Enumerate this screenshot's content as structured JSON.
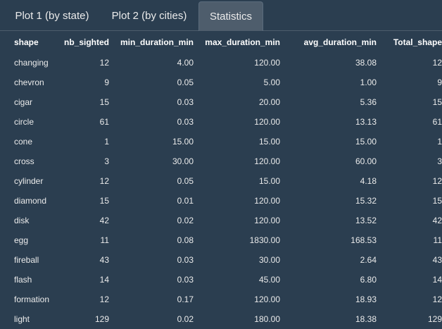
{
  "tabs": [
    {
      "label": "Plot 1 (by state)",
      "active": false
    },
    {
      "label": "Plot 2 (by cities)",
      "active": false
    },
    {
      "label": "Statistics",
      "active": true
    }
  ],
  "table": {
    "columns": [
      "shape",
      "nb_sighted",
      "min_duration_min",
      "max_duration_min",
      "avg_duration_min",
      "Total_shape"
    ],
    "rows": [
      [
        "changing",
        "12",
        "4.00",
        "120.00",
        "38.08",
        "12"
      ],
      [
        "chevron",
        "9",
        "0.05",
        "5.00",
        "1.00",
        "9"
      ],
      [
        "cigar",
        "15",
        "0.03",
        "20.00",
        "5.36",
        "15"
      ],
      [
        "circle",
        "61",
        "0.03",
        "120.00",
        "13.13",
        "61"
      ],
      [
        "cone",
        "1",
        "15.00",
        "15.00",
        "15.00",
        "1"
      ],
      [
        "cross",
        "3",
        "30.00",
        "120.00",
        "60.00",
        "3"
      ],
      [
        "cylinder",
        "12",
        "0.05",
        "15.00",
        "4.18",
        "12"
      ],
      [
        "diamond",
        "15",
        "0.01",
        "120.00",
        "15.32",
        "15"
      ],
      [
        "disk",
        "42",
        "0.02",
        "120.00",
        "13.52",
        "42"
      ],
      [
        "egg",
        "11",
        "0.08",
        "1830.00",
        "168.53",
        "11"
      ],
      [
        "fireball",
        "43",
        "0.03",
        "30.00",
        "2.64",
        "43"
      ],
      [
        "flash",
        "14",
        "0.03",
        "45.00",
        "6.80",
        "14"
      ],
      [
        "formation",
        "12",
        "0.17",
        "120.00",
        "18.93",
        "12"
      ],
      [
        "light",
        "129",
        "0.02",
        "180.00",
        "18.38",
        "129"
      ]
    ]
  },
  "colors": {
    "background": "#2b3e50",
    "active_tab": "#4e5d6c",
    "text": "#ebebeb"
  }
}
